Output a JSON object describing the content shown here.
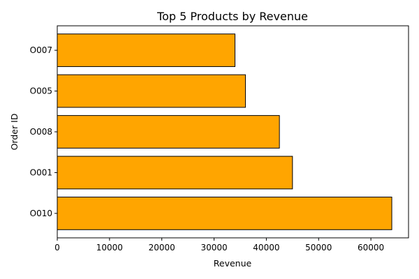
{
  "chart_data": {
    "type": "bar",
    "orientation": "horizontal",
    "title": "Top 5 Products by Revenue",
    "xlabel": "Revenue",
    "ylabel": "Order ID",
    "categories": [
      "O010",
      "O001",
      "O008",
      "O005",
      "O007"
    ],
    "values": [
      64000,
      45000,
      42500,
      36000,
      34000
    ],
    "xlim": [
      0,
      67200
    ],
    "xticks": [
      0,
      10000,
      20000,
      30000,
      40000,
      50000,
      60000
    ],
    "grid": false,
    "legend": "none",
    "bar_color": "#FFA500",
    "bar_edge_color": "#000000"
  }
}
